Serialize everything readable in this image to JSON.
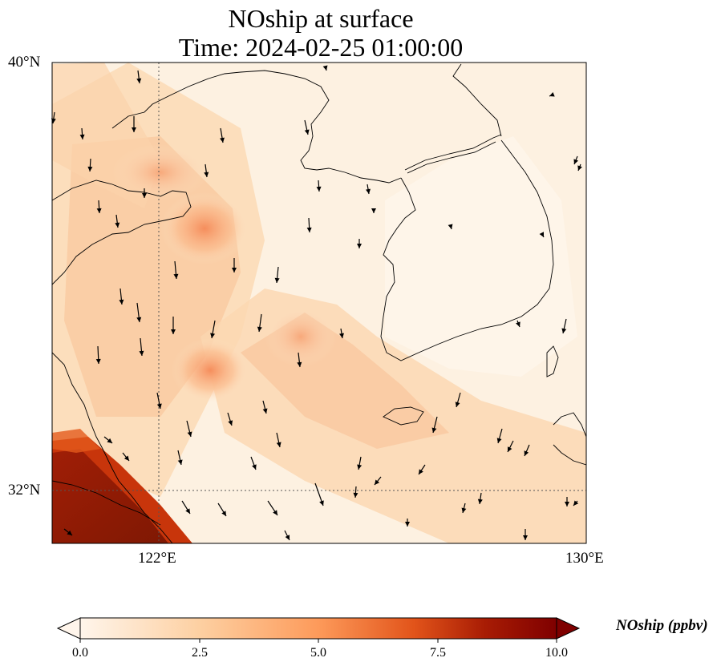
{
  "title": "NOship at surface",
  "subtitle": "Time: 2024-02-25 01:00:00",
  "lat_labels": [
    "40°N",
    "32°N"
  ],
  "lon_labels": [
    "122°E",
    "130°E"
  ],
  "extent": {
    "lon_min": 120,
    "lon_max": 130,
    "lat_min": 31,
    "lat_max": 40
  },
  "colorbar": {
    "label": "NOship (ppbv)",
    "ticks": [
      "0.0",
      "2.5",
      "5.0",
      "7.5",
      "10.0"
    ],
    "range": [
      0,
      10
    ],
    "extend": "both",
    "colormap": [
      "#fff5eb",
      "#fdd0a2",
      "#fd8d3c",
      "#d94801",
      "#7f2704"
    ]
  },
  "colors": {
    "land_line": "#000000",
    "gridline": "#555555",
    "wind_arrow": "#000000"
  }
}
